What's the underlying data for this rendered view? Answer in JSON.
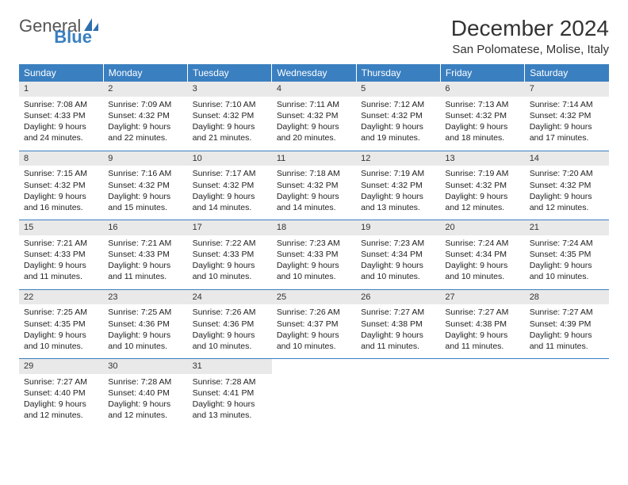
{
  "logo": {
    "text1": "General",
    "text2": "Blue"
  },
  "title": "December 2024",
  "location": "San Polomatese, Molise, Italy",
  "colors": {
    "header_bg": "#3a7fc0",
    "header_text": "#ffffff",
    "daynum_bg": "#e9e9e9",
    "border": "#3a7fc0",
    "body_text": "#222222"
  },
  "weekdays": [
    "Sunday",
    "Monday",
    "Tuesday",
    "Wednesday",
    "Thursday",
    "Friday",
    "Saturday"
  ],
  "weeks": [
    [
      {
        "d": "1",
        "sr": "Sunrise: 7:08 AM",
        "ss": "Sunset: 4:33 PM",
        "dl1": "Daylight: 9 hours",
        "dl2": "and 24 minutes."
      },
      {
        "d": "2",
        "sr": "Sunrise: 7:09 AM",
        "ss": "Sunset: 4:32 PM",
        "dl1": "Daylight: 9 hours",
        "dl2": "and 22 minutes."
      },
      {
        "d": "3",
        "sr": "Sunrise: 7:10 AM",
        "ss": "Sunset: 4:32 PM",
        "dl1": "Daylight: 9 hours",
        "dl2": "and 21 minutes."
      },
      {
        "d": "4",
        "sr": "Sunrise: 7:11 AM",
        "ss": "Sunset: 4:32 PM",
        "dl1": "Daylight: 9 hours",
        "dl2": "and 20 minutes."
      },
      {
        "d": "5",
        "sr": "Sunrise: 7:12 AM",
        "ss": "Sunset: 4:32 PM",
        "dl1": "Daylight: 9 hours",
        "dl2": "and 19 minutes."
      },
      {
        "d": "6",
        "sr": "Sunrise: 7:13 AM",
        "ss": "Sunset: 4:32 PM",
        "dl1": "Daylight: 9 hours",
        "dl2": "and 18 minutes."
      },
      {
        "d": "7",
        "sr": "Sunrise: 7:14 AM",
        "ss": "Sunset: 4:32 PM",
        "dl1": "Daylight: 9 hours",
        "dl2": "and 17 minutes."
      }
    ],
    [
      {
        "d": "8",
        "sr": "Sunrise: 7:15 AM",
        "ss": "Sunset: 4:32 PM",
        "dl1": "Daylight: 9 hours",
        "dl2": "and 16 minutes."
      },
      {
        "d": "9",
        "sr": "Sunrise: 7:16 AM",
        "ss": "Sunset: 4:32 PM",
        "dl1": "Daylight: 9 hours",
        "dl2": "and 15 minutes."
      },
      {
        "d": "10",
        "sr": "Sunrise: 7:17 AM",
        "ss": "Sunset: 4:32 PM",
        "dl1": "Daylight: 9 hours",
        "dl2": "and 14 minutes."
      },
      {
        "d": "11",
        "sr": "Sunrise: 7:18 AM",
        "ss": "Sunset: 4:32 PM",
        "dl1": "Daylight: 9 hours",
        "dl2": "and 14 minutes."
      },
      {
        "d": "12",
        "sr": "Sunrise: 7:19 AM",
        "ss": "Sunset: 4:32 PM",
        "dl1": "Daylight: 9 hours",
        "dl2": "and 13 minutes."
      },
      {
        "d": "13",
        "sr": "Sunrise: 7:19 AM",
        "ss": "Sunset: 4:32 PM",
        "dl1": "Daylight: 9 hours",
        "dl2": "and 12 minutes."
      },
      {
        "d": "14",
        "sr": "Sunrise: 7:20 AM",
        "ss": "Sunset: 4:32 PM",
        "dl1": "Daylight: 9 hours",
        "dl2": "and 12 minutes."
      }
    ],
    [
      {
        "d": "15",
        "sr": "Sunrise: 7:21 AM",
        "ss": "Sunset: 4:33 PM",
        "dl1": "Daylight: 9 hours",
        "dl2": "and 11 minutes."
      },
      {
        "d": "16",
        "sr": "Sunrise: 7:21 AM",
        "ss": "Sunset: 4:33 PM",
        "dl1": "Daylight: 9 hours",
        "dl2": "and 11 minutes."
      },
      {
        "d": "17",
        "sr": "Sunrise: 7:22 AM",
        "ss": "Sunset: 4:33 PM",
        "dl1": "Daylight: 9 hours",
        "dl2": "and 10 minutes."
      },
      {
        "d": "18",
        "sr": "Sunrise: 7:23 AM",
        "ss": "Sunset: 4:33 PM",
        "dl1": "Daylight: 9 hours",
        "dl2": "and 10 minutes."
      },
      {
        "d": "19",
        "sr": "Sunrise: 7:23 AM",
        "ss": "Sunset: 4:34 PM",
        "dl1": "Daylight: 9 hours",
        "dl2": "and 10 minutes."
      },
      {
        "d": "20",
        "sr": "Sunrise: 7:24 AM",
        "ss": "Sunset: 4:34 PM",
        "dl1": "Daylight: 9 hours",
        "dl2": "and 10 minutes."
      },
      {
        "d": "21",
        "sr": "Sunrise: 7:24 AM",
        "ss": "Sunset: 4:35 PM",
        "dl1": "Daylight: 9 hours",
        "dl2": "and 10 minutes."
      }
    ],
    [
      {
        "d": "22",
        "sr": "Sunrise: 7:25 AM",
        "ss": "Sunset: 4:35 PM",
        "dl1": "Daylight: 9 hours",
        "dl2": "and 10 minutes."
      },
      {
        "d": "23",
        "sr": "Sunrise: 7:25 AM",
        "ss": "Sunset: 4:36 PM",
        "dl1": "Daylight: 9 hours",
        "dl2": "and 10 minutes."
      },
      {
        "d": "24",
        "sr": "Sunrise: 7:26 AM",
        "ss": "Sunset: 4:36 PM",
        "dl1": "Daylight: 9 hours",
        "dl2": "and 10 minutes."
      },
      {
        "d": "25",
        "sr": "Sunrise: 7:26 AM",
        "ss": "Sunset: 4:37 PM",
        "dl1": "Daylight: 9 hours",
        "dl2": "and 10 minutes."
      },
      {
        "d": "26",
        "sr": "Sunrise: 7:27 AM",
        "ss": "Sunset: 4:38 PM",
        "dl1": "Daylight: 9 hours",
        "dl2": "and 11 minutes."
      },
      {
        "d": "27",
        "sr": "Sunrise: 7:27 AM",
        "ss": "Sunset: 4:38 PM",
        "dl1": "Daylight: 9 hours",
        "dl2": "and 11 minutes."
      },
      {
        "d": "28",
        "sr": "Sunrise: 7:27 AM",
        "ss": "Sunset: 4:39 PM",
        "dl1": "Daylight: 9 hours",
        "dl2": "and 11 minutes."
      }
    ],
    [
      {
        "d": "29",
        "sr": "Sunrise: 7:27 AM",
        "ss": "Sunset: 4:40 PM",
        "dl1": "Daylight: 9 hours",
        "dl2": "and 12 minutes."
      },
      {
        "d": "30",
        "sr": "Sunrise: 7:28 AM",
        "ss": "Sunset: 4:40 PM",
        "dl1": "Daylight: 9 hours",
        "dl2": "and 12 minutes."
      },
      {
        "d": "31",
        "sr": "Sunrise: 7:28 AM",
        "ss": "Sunset: 4:41 PM",
        "dl1": "Daylight: 9 hours",
        "dl2": "and 13 minutes."
      },
      null,
      null,
      null,
      null
    ]
  ]
}
